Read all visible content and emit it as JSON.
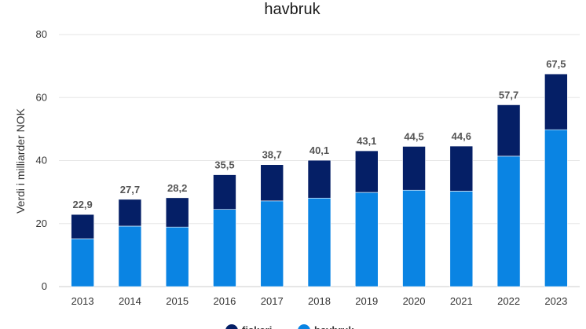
{
  "chart_data": {
    "type": "bar",
    "stacked": true,
    "title": "havbruk",
    "xlabel": "",
    "ylabel": "Verdi i milliarder NOK",
    "ylim": [
      0,
      80
    ],
    "yticks": [
      "0",
      "20",
      "40",
      "60",
      "80"
    ],
    "categories": [
      "2013",
      "2014",
      "2015",
      "2016",
      "2017",
      "2018",
      "2019",
      "2020",
      "2021",
      "2022",
      "2023"
    ],
    "series": [
      {
        "name": "havbruk",
        "color": "#0a84e3",
        "values": [
          15.2,
          19.2,
          18.9,
          24.5,
          27.2,
          28.1,
          29.9,
          30.6,
          30.3,
          41.4,
          49.8
        ]
      },
      {
        "name": "fiskeri",
        "color": "#051f66",
        "values": [
          7.7,
          8.5,
          9.3,
          11.0,
          11.5,
          12.0,
          13.2,
          13.9,
          14.3,
          16.3,
          17.7
        ]
      }
    ],
    "totals": [
      "22,9",
      "27,7",
      "28,2",
      "35,5",
      "38,7",
      "40,1",
      "43,1",
      "44,5",
      "44,6",
      "57,7",
      "67,5"
    ],
    "grid": true,
    "legend_position": "bottom"
  }
}
